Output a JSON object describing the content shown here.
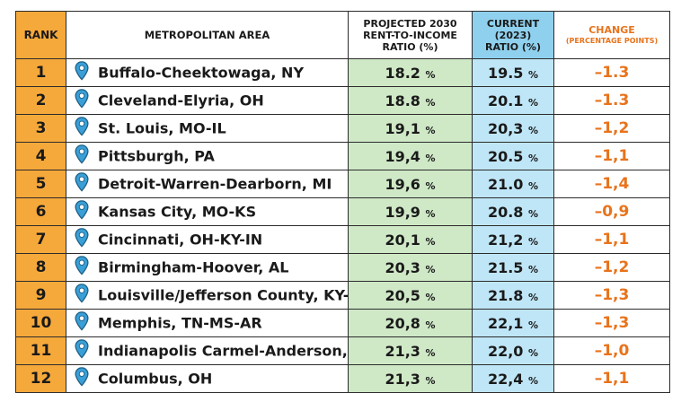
{
  "headers": {
    "rank": "RANK",
    "metro": "METROPOLITAN AREA",
    "projected": [
      "PROJECTED 2030",
      "RENT-TO-INCOME",
      "RATIO (%)"
    ],
    "current": [
      "CURRENT",
      "(2023)",
      "RATIO (%)"
    ],
    "change": "CHANGE",
    "change_sub": "(PERCENTAGE POINTS)"
  },
  "pct_symbol": "%",
  "icon": "map-pin-icon",
  "colors": {
    "rank_bg": "#f6a93b",
    "projected_bg": "#cfe8c6",
    "current_bg": "#bfe6f7",
    "change_text": "#e8731c",
    "pin": "#3a9fd6"
  },
  "rows": [
    {
      "rank": "1",
      "metro": "Buffalo-Cheektowaga, NY",
      "projected": "18.2",
      "current": "19.5",
      "change": "-1.3"
    },
    {
      "rank": "2",
      "metro": "Cleveland-Elyria, OH",
      "projected": "18.8",
      "current": "20.1",
      "change": "-1.3"
    },
    {
      "rank": "3",
      "metro": "St. Louis, MO-IL",
      "projected": "19,1",
      "current": "20,3",
      "change": "-1,2"
    },
    {
      "rank": "4",
      "metro": "Pittsburgh, PA",
      "projected": "19,4",
      "current": "20.5",
      "change": "-1,1"
    },
    {
      "rank": "5",
      "metro": "Detroit-Warren-Dearborn, MI",
      "projected": "19,6",
      "current": "21.0",
      "change": "-1,4"
    },
    {
      "rank": "6",
      "metro": "Kansas City, MO-KS",
      "projected": "19,9",
      "current": "20.8",
      "change": "-0,9"
    },
    {
      "rank": "7",
      "metro": "Cincinnati, OH-KY-IN",
      "projected": "20,1",
      "current": "21,2",
      "change": "-1,1"
    },
    {
      "rank": "8",
      "metro": "Birmingham-Hoover, AL",
      "projected": "20,3",
      "current": "21.5",
      "change": "-1,2"
    },
    {
      "rank": "9",
      "metro": "Louisville/Jefferson County, KY-IN",
      "projected": "20,5",
      "current": "21.8",
      "change": "-1,3"
    },
    {
      "rank": "10",
      "metro": "Memphis, TN-MS-AR",
      "projected": "20,8",
      "current": "22,1",
      "change": "-1,3"
    },
    {
      "rank": "11",
      "metro": "Indianapolis  Carmel-Anderson, IN",
      "projected": "21,3",
      "current": "22,0",
      "change": "-1,0"
    },
    {
      "rank": "12",
      "metro": "Columbus, OH",
      "projected": "21,3",
      "current": "22,4",
      "change": "-1,1"
    }
  ]
}
